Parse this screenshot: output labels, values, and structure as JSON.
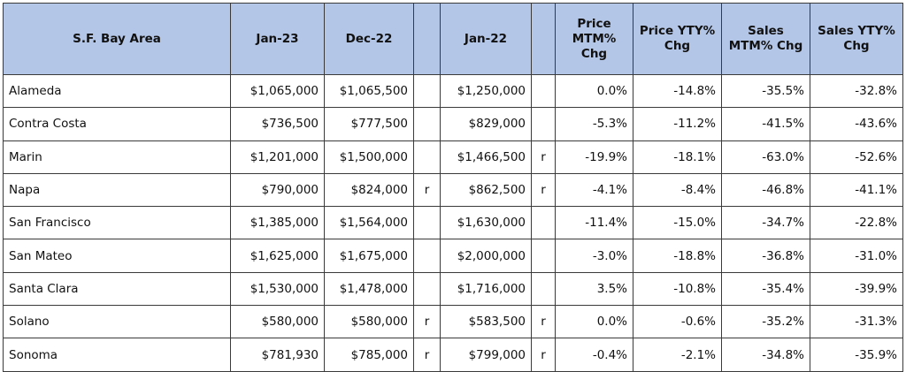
{
  "table": {
    "header": {
      "area": "S.F. Bay Area",
      "jan23": "Jan-23",
      "dec22": "Dec-22",
      "jan22": "Jan-22",
      "price_mtm": "Price MTM% Chg",
      "price_yty": "Price YTY% Chg",
      "sales_mtm": "Sales MTM% Chg",
      "sales_yty": "Sales YTY% Chg"
    },
    "rows": [
      {
        "area": "Alameda",
        "jan23": "$1,065,000",
        "dec22": "$1,065,500",
        "jan22": "$1,250,000",
        "price_mtm": "0.0%",
        "price_yty": "-14.8%",
        "sales_mtm": "-35.5%",
        "sales_yty": "-32.8%"
      },
      {
        "area": "Contra Costa",
        "jan23": "$736,500",
        "dec22": "$777,500",
        "jan22": "$829,000",
        "price_mtm": "-5.3%",
        "price_yty": "-11.2%",
        "sales_mtm": "-41.5%",
        "sales_yty": "-43.6%"
      },
      {
        "area": "Marin",
        "jan23": "$1,201,000",
        "dec22": "$1,500,000",
        "jan22": "$1,466,500",
        "jan22_rev": "r",
        "price_mtm": "-19.9%",
        "price_yty": "-18.1%",
        "sales_mtm": "-63.0%",
        "sales_yty": "-52.6%"
      },
      {
        "area": "Napa",
        "jan23": "$790,000",
        "dec22": "$824,000",
        "dec22_rev": "r",
        "jan22": "$862,500",
        "jan22_rev": "r",
        "price_mtm": "-4.1%",
        "price_yty": "-8.4%",
        "sales_mtm": "-46.8%",
        "sales_yty": "-41.1%"
      },
      {
        "area": "San Francisco",
        "jan23": "$1,385,000",
        "dec22": "$1,564,000",
        "jan22": "$1,630,000",
        "price_mtm": "-11.4%",
        "price_yty": "-15.0%",
        "sales_mtm": "-34.7%",
        "sales_yty": "-22.8%"
      },
      {
        "area": "San Mateo",
        "jan23": "$1,625,000",
        "dec22": "$1,675,000",
        "jan22": "$2,000,000",
        "price_mtm": "-3.0%",
        "price_yty": "-18.8%",
        "sales_mtm": "-36.8%",
        "sales_yty": "-31.0%"
      },
      {
        "area": "Santa Clara",
        "jan23": "$1,530,000",
        "dec22": "$1,478,000",
        "jan22": "$1,716,000",
        "price_mtm": "3.5%",
        "price_yty": "-10.8%",
        "sales_mtm": "-35.4%",
        "sales_yty": "-39.9%"
      },
      {
        "area": "Solano",
        "jan23": "$580,000",
        "dec22": "$580,000",
        "dec22_rev": "r",
        "jan22": "$583,500",
        "jan22_rev": "r",
        "price_mtm": "0.0%",
        "price_yty": "-0.6%",
        "sales_mtm": "-35.2%",
        "sales_yty": "-31.3%"
      },
      {
        "area": "Sonoma",
        "jan23": "$781,930",
        "dec22": "$785,000",
        "dec22_rev": "r",
        "jan22": "$799,000",
        "jan22_rev": "r",
        "price_mtm": "-0.4%",
        "price_yty": "-2.1%",
        "sales_mtm": "-34.8%",
        "sales_yty": "-35.9%"
      }
    ]
  }
}
